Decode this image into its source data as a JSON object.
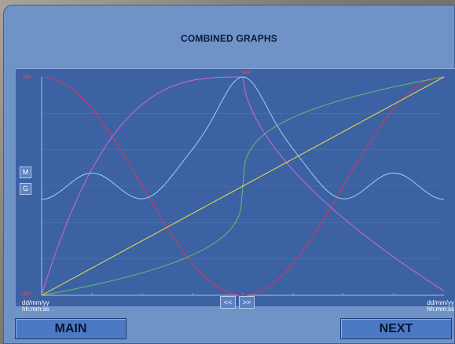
{
  "window": {
    "title": "COMBINED GRAPHS"
  },
  "side_buttons": {
    "m_label": "M",
    "g_label": "G"
  },
  "nav_buttons": {
    "prev_label": "<<",
    "next_label": ">>"
  },
  "axis": {
    "date_format": "dd/mm/yy",
    "time_format": "hh:mm:ss",
    "y_top_label": "1000",
    "y_bottom_label": "0000",
    "peak_label": "MAX"
  },
  "footer": {
    "main_label": "MAIN",
    "next_label": "NEXT"
  },
  "colors": {
    "background": "#6f93c7",
    "plot": "#3c62a3",
    "red_curve": "#e0335a",
    "magenta_curve": "#d763d9",
    "cyan_curve": "#8fd6f2",
    "green_curve": "#5fbf6a",
    "yellow_curve": "#e9e24a"
  }
}
